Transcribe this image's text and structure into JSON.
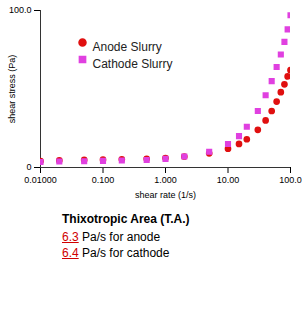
{
  "chart_data": {
    "type": "scatter",
    "log": "x",
    "grid": false,
    "legend": "top-left",
    "xlabel": "shear rate (1/s)",
    "ylabel": "shear stress (Pa)",
    "xlim": [
      0.01,
      100
    ],
    "ylim": [
      0,
      100
    ],
    "xticks": [
      {
        "value": 0.01,
        "label": "0.01000"
      },
      {
        "value": 0.1,
        "label": "0.100"
      },
      {
        "value": 1,
        "label": "1.000"
      },
      {
        "value": 10,
        "label": "10.00"
      },
      {
        "value": 100,
        "label": "100.0"
      }
    ],
    "yticks": [
      0,
      {
        "value": 100,
        "label": "100.0"
      }
    ],
    "x": [
      0.01,
      0.02,
      0.05,
      0.1,
      0.2,
      0.5,
      1,
      2,
      5,
      10,
      15,
      20,
      30,
      40,
      50,
      60,
      70,
      80,
      90,
      100
    ],
    "series": [
      {
        "name": "Anode Slurry",
        "color": "#e01010",
        "marker": "circle",
        "values": [
          4,
          4.5,
          4.8,
          5,
          5.2,
          5.5,
          6,
          7,
          9,
          12,
          15,
          18,
          24,
          30,
          36,
          42,
          48,
          53,
          58,
          62
        ]
      },
      {
        "name": "Cathode Slurry",
        "color": "#e040e0",
        "marker": "square",
        "values": [
          3.5,
          3.8,
          4,
          4.2,
          4.5,
          4.8,
          5.5,
          7,
          10,
          15,
          20,
          26,
          36,
          46,
          55,
          64,
          72,
          80,
          88,
          97
        ]
      }
    ],
    "annotations": {
      "title": "Thixotropic Area (T.A.)",
      "items": [
        {
          "value": 6.3,
          "text": "Pa/s for anode"
        },
        {
          "value": 6.4,
          "text": "Pa/s for cathode"
        }
      ]
    }
  }
}
